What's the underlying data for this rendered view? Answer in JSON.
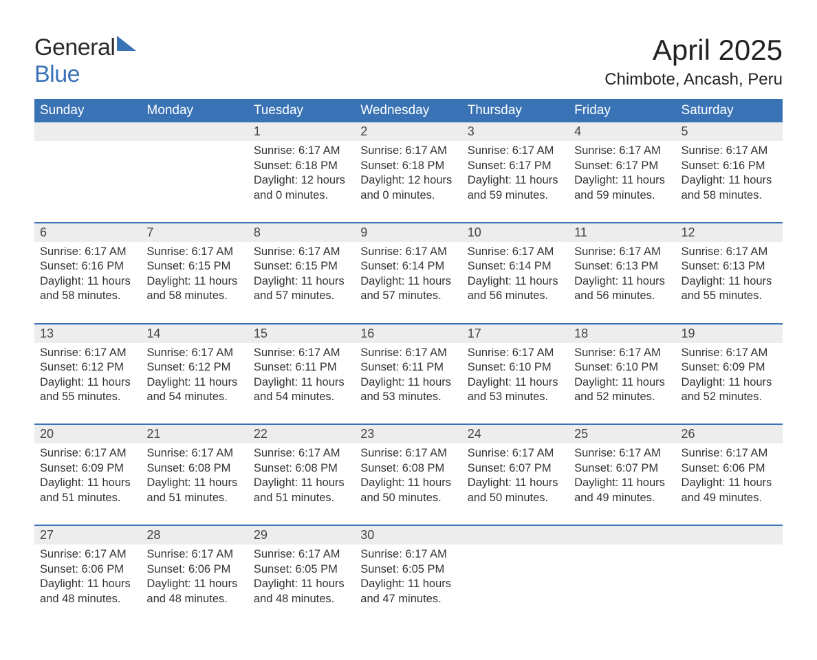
{
  "logo": {
    "line1": "General",
    "line2": "Blue"
  },
  "title": "April 2025",
  "location": "Chimbote, Ancash, Peru",
  "colors": {
    "header_bg": "#3973b6",
    "header_text": "#ffffff",
    "daynum_bg": "#ededed",
    "row_border": "#3973b6",
    "body_text": "#333333",
    "background": "#ffffff"
  },
  "typography": {
    "title_fontsize": 42,
    "location_fontsize": 24,
    "header_fontsize": 19,
    "daynum_fontsize": 18,
    "cell_fontsize": 16.5
  },
  "weekdays": [
    "Sunday",
    "Monday",
    "Tuesday",
    "Wednesday",
    "Thursday",
    "Friday",
    "Saturday"
  ],
  "grid": [
    [
      null,
      null,
      {
        "day": "1",
        "sunrise": "Sunrise: 6:17 AM",
        "sunset": "Sunset: 6:18 PM",
        "daylight1": "Daylight: 12 hours",
        "daylight2": "and 0 minutes."
      },
      {
        "day": "2",
        "sunrise": "Sunrise: 6:17 AM",
        "sunset": "Sunset: 6:18 PM",
        "daylight1": "Daylight: 12 hours",
        "daylight2": "and 0 minutes."
      },
      {
        "day": "3",
        "sunrise": "Sunrise: 6:17 AM",
        "sunset": "Sunset: 6:17 PM",
        "daylight1": "Daylight: 11 hours",
        "daylight2": "and 59 minutes."
      },
      {
        "day": "4",
        "sunrise": "Sunrise: 6:17 AM",
        "sunset": "Sunset: 6:17 PM",
        "daylight1": "Daylight: 11 hours",
        "daylight2": "and 59 minutes."
      },
      {
        "day": "5",
        "sunrise": "Sunrise: 6:17 AM",
        "sunset": "Sunset: 6:16 PM",
        "daylight1": "Daylight: 11 hours",
        "daylight2": "and 58 minutes."
      }
    ],
    [
      {
        "day": "6",
        "sunrise": "Sunrise: 6:17 AM",
        "sunset": "Sunset: 6:16 PM",
        "daylight1": "Daylight: 11 hours",
        "daylight2": "and 58 minutes."
      },
      {
        "day": "7",
        "sunrise": "Sunrise: 6:17 AM",
        "sunset": "Sunset: 6:15 PM",
        "daylight1": "Daylight: 11 hours",
        "daylight2": "and 58 minutes."
      },
      {
        "day": "8",
        "sunrise": "Sunrise: 6:17 AM",
        "sunset": "Sunset: 6:15 PM",
        "daylight1": "Daylight: 11 hours",
        "daylight2": "and 57 minutes."
      },
      {
        "day": "9",
        "sunrise": "Sunrise: 6:17 AM",
        "sunset": "Sunset: 6:14 PM",
        "daylight1": "Daylight: 11 hours",
        "daylight2": "and 57 minutes."
      },
      {
        "day": "10",
        "sunrise": "Sunrise: 6:17 AM",
        "sunset": "Sunset: 6:14 PM",
        "daylight1": "Daylight: 11 hours",
        "daylight2": "and 56 minutes."
      },
      {
        "day": "11",
        "sunrise": "Sunrise: 6:17 AM",
        "sunset": "Sunset: 6:13 PM",
        "daylight1": "Daylight: 11 hours",
        "daylight2": "and 56 minutes."
      },
      {
        "day": "12",
        "sunrise": "Sunrise: 6:17 AM",
        "sunset": "Sunset: 6:13 PM",
        "daylight1": "Daylight: 11 hours",
        "daylight2": "and 55 minutes."
      }
    ],
    [
      {
        "day": "13",
        "sunrise": "Sunrise: 6:17 AM",
        "sunset": "Sunset: 6:12 PM",
        "daylight1": "Daylight: 11 hours",
        "daylight2": "and 55 minutes."
      },
      {
        "day": "14",
        "sunrise": "Sunrise: 6:17 AM",
        "sunset": "Sunset: 6:12 PM",
        "daylight1": "Daylight: 11 hours",
        "daylight2": "and 54 minutes."
      },
      {
        "day": "15",
        "sunrise": "Sunrise: 6:17 AM",
        "sunset": "Sunset: 6:11 PM",
        "daylight1": "Daylight: 11 hours",
        "daylight2": "and 54 minutes."
      },
      {
        "day": "16",
        "sunrise": "Sunrise: 6:17 AM",
        "sunset": "Sunset: 6:11 PM",
        "daylight1": "Daylight: 11 hours",
        "daylight2": "and 53 minutes."
      },
      {
        "day": "17",
        "sunrise": "Sunrise: 6:17 AM",
        "sunset": "Sunset: 6:10 PM",
        "daylight1": "Daylight: 11 hours",
        "daylight2": "and 53 minutes."
      },
      {
        "day": "18",
        "sunrise": "Sunrise: 6:17 AM",
        "sunset": "Sunset: 6:10 PM",
        "daylight1": "Daylight: 11 hours",
        "daylight2": "and 52 minutes."
      },
      {
        "day": "19",
        "sunrise": "Sunrise: 6:17 AM",
        "sunset": "Sunset: 6:09 PM",
        "daylight1": "Daylight: 11 hours",
        "daylight2": "and 52 minutes."
      }
    ],
    [
      {
        "day": "20",
        "sunrise": "Sunrise: 6:17 AM",
        "sunset": "Sunset: 6:09 PM",
        "daylight1": "Daylight: 11 hours",
        "daylight2": "and 51 minutes."
      },
      {
        "day": "21",
        "sunrise": "Sunrise: 6:17 AM",
        "sunset": "Sunset: 6:08 PM",
        "daylight1": "Daylight: 11 hours",
        "daylight2": "and 51 minutes."
      },
      {
        "day": "22",
        "sunrise": "Sunrise: 6:17 AM",
        "sunset": "Sunset: 6:08 PM",
        "daylight1": "Daylight: 11 hours",
        "daylight2": "and 51 minutes."
      },
      {
        "day": "23",
        "sunrise": "Sunrise: 6:17 AM",
        "sunset": "Sunset: 6:08 PM",
        "daylight1": "Daylight: 11 hours",
        "daylight2": "and 50 minutes."
      },
      {
        "day": "24",
        "sunrise": "Sunrise: 6:17 AM",
        "sunset": "Sunset: 6:07 PM",
        "daylight1": "Daylight: 11 hours",
        "daylight2": "and 50 minutes."
      },
      {
        "day": "25",
        "sunrise": "Sunrise: 6:17 AM",
        "sunset": "Sunset: 6:07 PM",
        "daylight1": "Daylight: 11 hours",
        "daylight2": "and 49 minutes."
      },
      {
        "day": "26",
        "sunrise": "Sunrise: 6:17 AM",
        "sunset": "Sunset: 6:06 PM",
        "daylight1": "Daylight: 11 hours",
        "daylight2": "and 49 minutes."
      }
    ],
    [
      {
        "day": "27",
        "sunrise": "Sunrise: 6:17 AM",
        "sunset": "Sunset: 6:06 PM",
        "daylight1": "Daylight: 11 hours",
        "daylight2": "and 48 minutes."
      },
      {
        "day": "28",
        "sunrise": "Sunrise: 6:17 AM",
        "sunset": "Sunset: 6:06 PM",
        "daylight1": "Daylight: 11 hours",
        "daylight2": "and 48 minutes."
      },
      {
        "day": "29",
        "sunrise": "Sunrise: 6:17 AM",
        "sunset": "Sunset: 6:05 PM",
        "daylight1": "Daylight: 11 hours",
        "daylight2": "and 48 minutes."
      },
      {
        "day": "30",
        "sunrise": "Sunrise: 6:17 AM",
        "sunset": "Sunset: 6:05 PM",
        "daylight1": "Daylight: 11 hours",
        "daylight2": "and 47 minutes."
      },
      null,
      null,
      null
    ]
  ]
}
